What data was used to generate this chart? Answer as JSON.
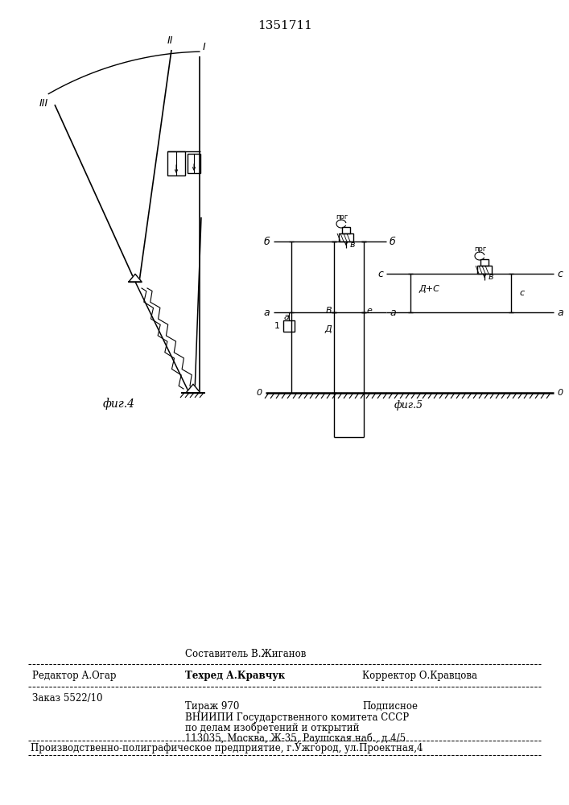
{
  "title": "1351711",
  "fig4_label": "фиг.4",
  "fig5_label": "фиг.5",
  "bg_color": "#ffffff",
  "line_color": "#000000",
  "footer": {
    "line1_left": "Редактор А.Огар",
    "line1_mid1": "Составитель В.Жиганов",
    "line2_mid": "Техред А.Кравчук",
    "line2_right": "Корректор О.Кравцова",
    "line3_left": "Заказ 5522/10",
    "line3_mid": "Тираж 970",
    "line3_right": "Подписное",
    "line4": "ВНИИПИ Государственного комитета СССР",
    "line5": "по делам изобретений и открытий",
    "line6": "113035, Москва, Ж-35, Раушская наб., д.4/5",
    "line7": "Производственно-полиграфическое предприятие, г.Ужгород, ул.Проектная,4"
  }
}
